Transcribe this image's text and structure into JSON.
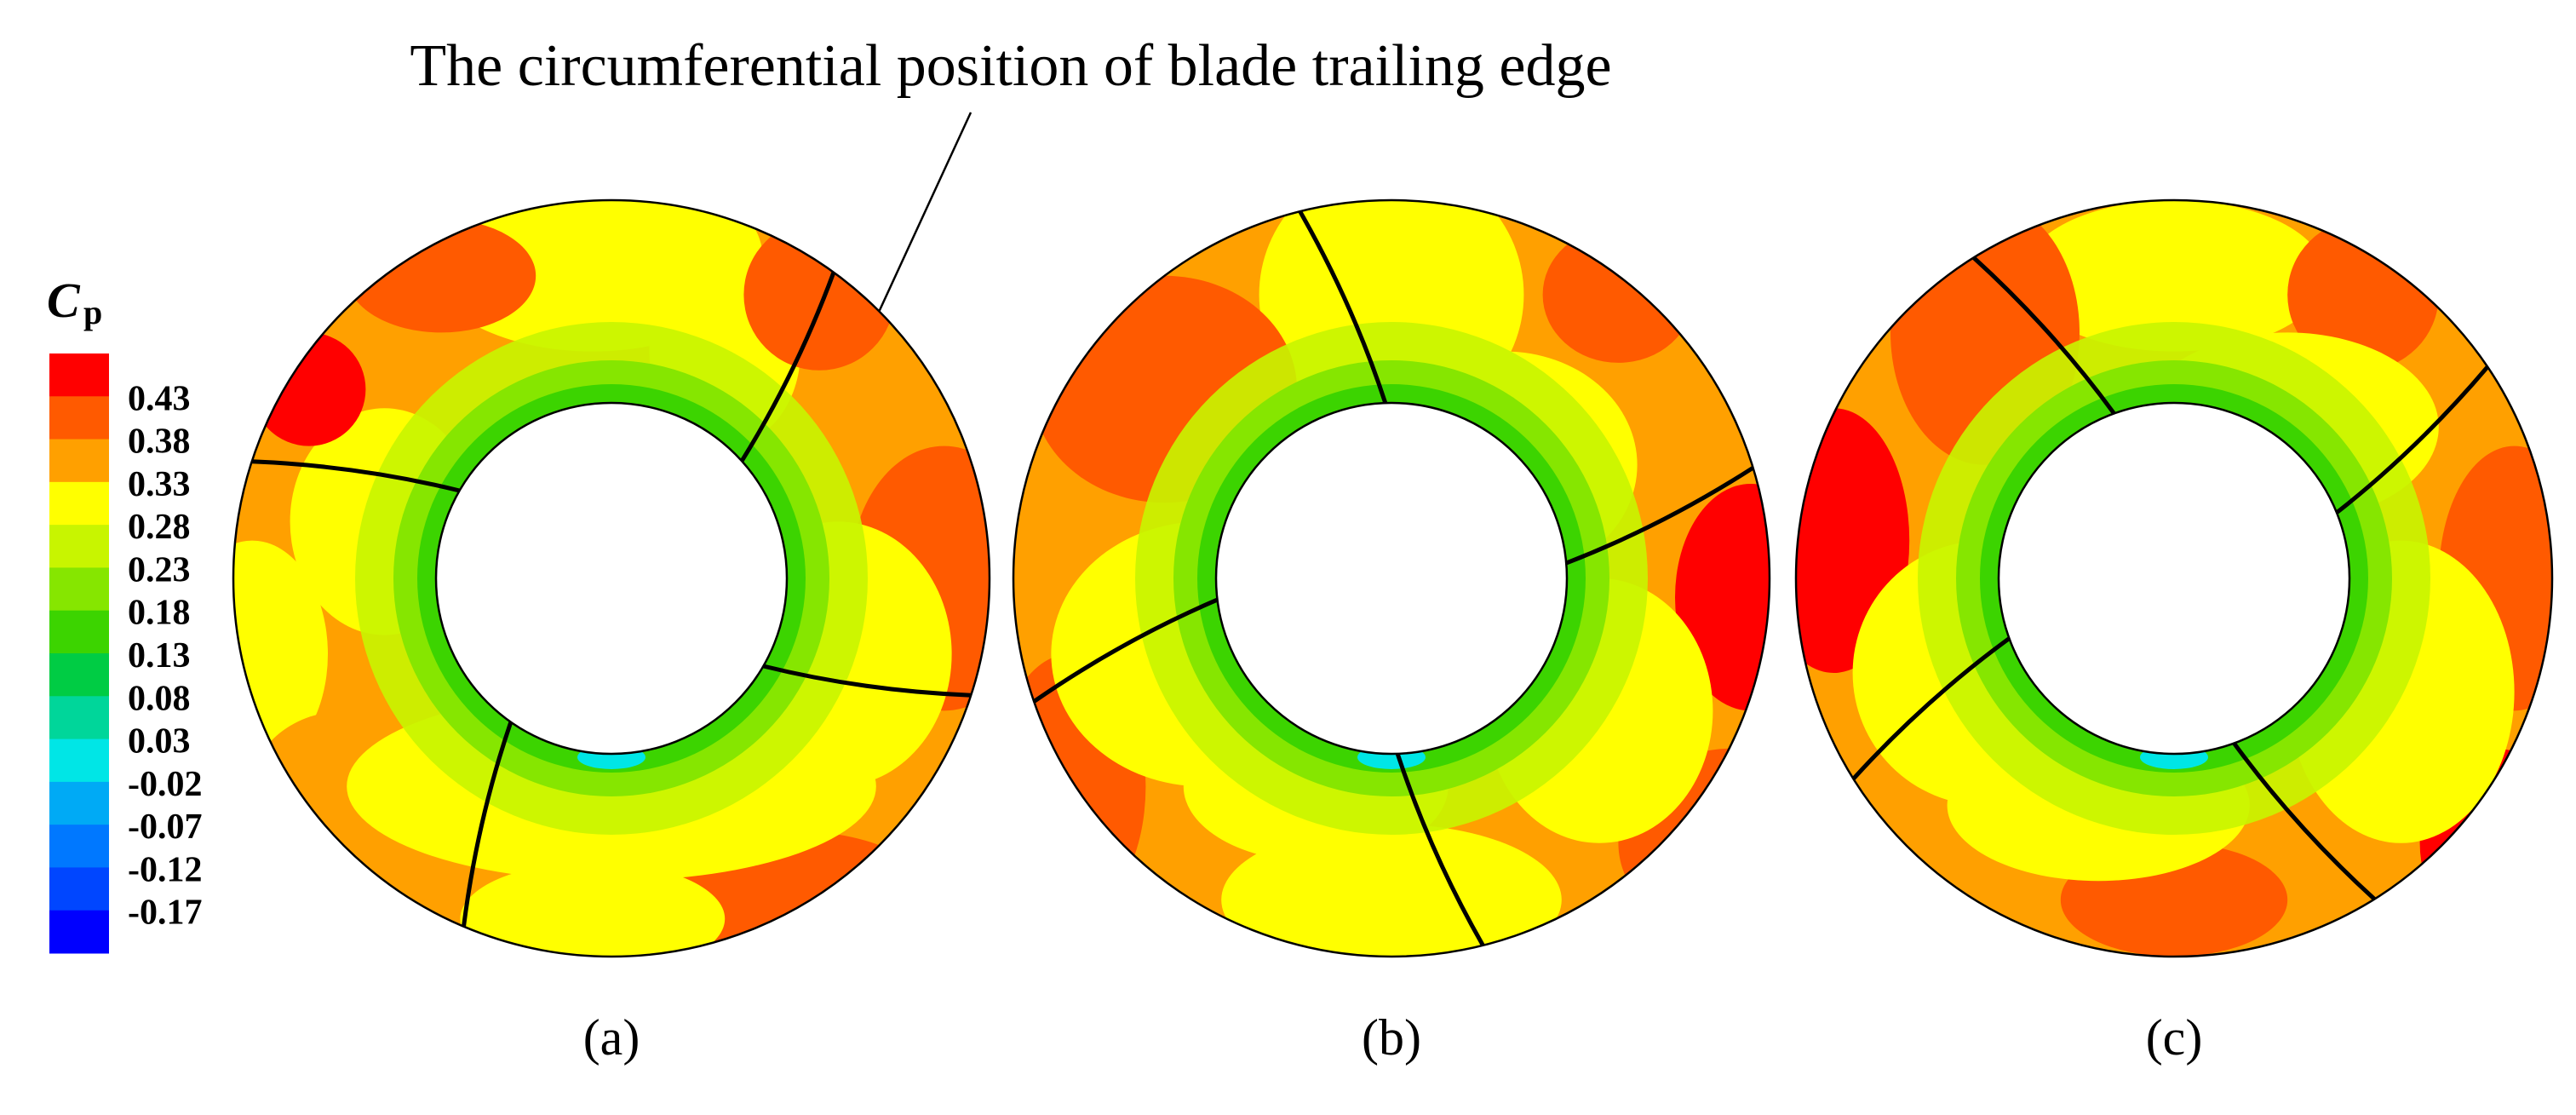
{
  "annotation": "The circumferential position of blade trailing edge",
  "colorbar": {
    "title": "C",
    "subscript": "p",
    "levels": [
      0.43,
      0.38,
      0.33,
      0.28,
      0.23,
      0.18,
      0.13,
      0.08,
      0.03,
      -0.02,
      -0.07,
      -0.12,
      -0.17
    ],
    "colors": [
      "#ff0000",
      "#ff5a00",
      "#ffa000",
      "#ffff00",
      "#c8f500",
      "#86e600",
      "#3cd400",
      "#00cc44",
      "#00d69a",
      "#00e6e6",
      "#00aaf5",
      "#0078ff",
      "#0046ff",
      "#0000ff"
    ]
  },
  "panels": [
    {
      "label": "(a)"
    },
    {
      "label": "(b)"
    },
    {
      "label": "(c)"
    }
  ]
}
